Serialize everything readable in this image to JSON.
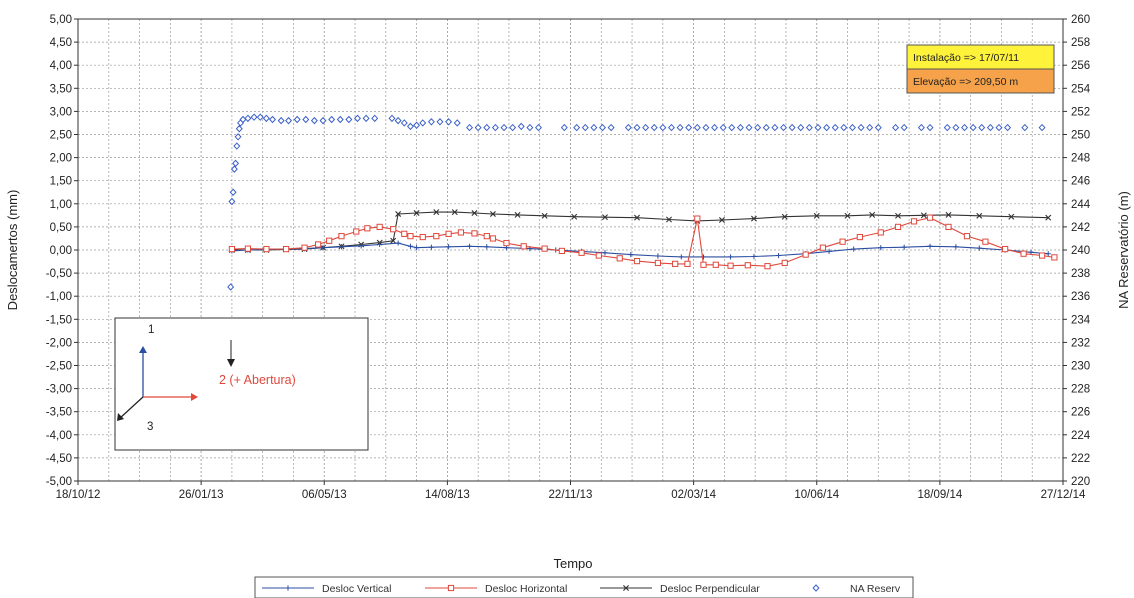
{
  "chart_data": {
    "type": "line",
    "title": "",
    "xlabel": "Tempo",
    "ylabel": "Deslocamertos (mm)",
    "y2label": "NA  Reservatório (m)",
    "xlim": [
      "2012-10-18",
      "2014-12-27"
    ],
    "ylim": [
      -5.0,
      5.0
    ],
    "y2lim": [
      220,
      260
    ],
    "x_ticks": [
      "2012-10-18",
      "2013-01-26",
      "2013-05-06",
      "2013-08-14",
      "2013-11-22",
      "2014-03-02",
      "2014-06-10",
      "2014-09-18",
      "2014-12-27"
    ],
    "x_tick_labels": [
      "18/10/12",
      "26/01/13",
      "06/05/13",
      "14/08/13",
      "22/11/13",
      "02/03/14",
      "10/06/14",
      "18/09/14",
      "27/12/14"
    ],
    "y_tick_labels": [
      "5,00",
      "4,50",
      "4,00",
      "3,50",
      "3,00",
      "2,50",
      "2,00",
      "1,50",
      "1,00",
      "0,50",
      "0,00",
      "-0,50",
      "-1,00",
      "-1,50",
      "-2,00",
      "-2,50",
      "-3,00",
      "-3,50",
      "-4,00",
      "-4,50",
      "-5,00"
    ],
    "y2_tick_labels": [
      "260",
      "258",
      "256",
      "254",
      "252",
      "250",
      "248",
      "246",
      "244",
      "242",
      "240",
      "238",
      "236",
      "234",
      "232",
      "230",
      "228",
      "226",
      "224",
      "222",
      "220"
    ],
    "grid": true,
    "legend_position": "bottom",
    "series": [
      {
        "name": "Desloc Vertical",
        "axis": "left",
        "color": "#2b4ea2",
        "marker": "plus",
        "x": [
          "2013-02-20",
          "2013-03-05",
          "2013-03-20",
          "2013-04-05",
          "2013-04-20",
          "2013-05-05",
          "2013-05-20",
          "2013-06-05",
          "2013-06-20",
          "2013-07-05",
          "2013-07-15",
          "2013-07-20",
          "2013-08-01",
          "2013-08-15",
          "2013-09-01",
          "2013-09-15",
          "2013-10-01",
          "2013-10-20",
          "2013-11-10",
          "2013-12-01",
          "2013-12-20",
          "2014-01-10",
          "2014-02-01",
          "2014-02-20",
          "2014-03-10",
          "2014-04-01",
          "2014-04-20",
          "2014-05-10",
          "2014-06-01",
          "2014-06-20",
          "2014-07-10",
          "2014-08-01",
          "2014-08-20",
          "2014-09-10",
          "2014-10-01",
          "2014-10-20",
          "2014-11-10",
          "2014-12-01",
          "2014-12-15"
        ],
        "values": [
          -0.02,
          0.0,
          0.01,
          0.02,
          0.03,
          0.05,
          0.07,
          0.09,
          0.12,
          0.15,
          0.08,
          0.05,
          0.06,
          0.07,
          0.08,
          0.07,
          0.05,
          0.03,
          0.0,
          -0.03,
          -0.06,
          -0.1,
          -0.13,
          -0.15,
          -0.15,
          -0.15,
          -0.14,
          -0.12,
          -0.08,
          -0.03,
          0.02,
          0.05,
          0.06,
          0.08,
          0.07,
          0.04,
          0.0,
          -0.05,
          -0.08
        ]
      },
      {
        "name": "Desloc Horizontal",
        "axis": "left",
        "color": "#e0483c",
        "marker": "square",
        "x": [
          "2013-02-20",
          "2013-03-05",
          "2013-03-20",
          "2013-04-05",
          "2013-04-20",
          "2013-05-01",
          "2013-05-10",
          "2013-05-20",
          "2013-06-01",
          "2013-06-10",
          "2013-06-20",
          "2013-07-01",
          "2013-07-10",
          "2013-07-15",
          "2013-07-25",
          "2013-08-05",
          "2013-08-15",
          "2013-08-25",
          "2013-09-05",
          "2013-09-15",
          "2013-09-20",
          "2013-10-01",
          "2013-10-15",
          "2013-11-01",
          "2013-11-15",
          "2013-12-01",
          "2013-12-15",
          "2014-01-01",
          "2014-01-15",
          "2014-02-01",
          "2014-02-15",
          "2014-02-25",
          "2014-03-05",
          "2014-03-10",
          "2014-03-20",
          "2014-04-01",
          "2014-04-15",
          "2014-05-01",
          "2014-05-15",
          "2014-06-01",
          "2014-06-15",
          "2014-07-01",
          "2014-07-15",
          "2014-08-01",
          "2014-08-15",
          "2014-08-28",
          "2014-09-10",
          "2014-09-25",
          "2014-10-10",
          "2014-10-25",
          "2014-11-10",
          "2014-11-25",
          "2014-12-10",
          "2014-12-20"
        ],
        "values": [
          0.02,
          0.03,
          0.02,
          0.02,
          0.05,
          0.12,
          0.2,
          0.3,
          0.4,
          0.47,
          0.5,
          0.45,
          0.35,
          0.3,
          0.28,
          0.3,
          0.35,
          0.38,
          0.36,
          0.3,
          0.25,
          0.15,
          0.08,
          0.03,
          -0.02,
          -0.06,
          -0.12,
          -0.18,
          -0.24,
          -0.28,
          -0.3,
          -0.3,
          0.68,
          -0.32,
          -0.32,
          -0.34,
          -0.33,
          -0.35,
          -0.28,
          -0.1,
          0.05,
          0.18,
          0.28,
          0.38,
          0.5,
          0.62,
          0.7,
          0.5,
          0.3,
          0.18,
          0.02,
          -0.08,
          -0.12,
          -0.16
        ]
      },
      {
        "name": "Desloc Perpendicular",
        "axis": "left",
        "color": "#333333",
        "marker": "x",
        "x": [
          "2013-02-20",
          "2013-03-05",
          "2013-03-20",
          "2013-04-05",
          "2013-04-20",
          "2013-05-05",
          "2013-05-20",
          "2013-06-05",
          "2013-06-20",
          "2013-07-01",
          "2013-07-05",
          "2013-07-20",
          "2013-08-05",
          "2013-08-20",
          "2013-09-05",
          "2013-09-20",
          "2013-10-10",
          "2013-11-01",
          "2013-11-25",
          "2013-12-20",
          "2014-01-15",
          "2014-02-10",
          "2014-03-05",
          "2014-03-25",
          "2014-04-20",
          "2014-05-15",
          "2014-06-10",
          "2014-07-05",
          "2014-07-25",
          "2014-08-15",
          "2014-09-05",
          "2014-09-25",
          "2014-10-20",
          "2014-11-15",
          "2014-12-15"
        ],
        "values": [
          0.0,
          0.0,
          0.0,
          0.01,
          0.02,
          0.05,
          0.08,
          0.12,
          0.16,
          0.2,
          0.78,
          0.8,
          0.82,
          0.82,
          0.8,
          0.78,
          0.76,
          0.74,
          0.72,
          0.71,
          0.7,
          0.66,
          0.63,
          0.65,
          0.68,
          0.72,
          0.74,
          0.74,
          0.76,
          0.74,
          0.75,
          0.76,
          0.74,
          0.72,
          0.7
        ]
      },
      {
        "name": "NA Reserv",
        "axis": "right",
        "color": "#3a5fc8",
        "marker": "diamond",
        "x": [
          "2013-02-19",
          "2013-02-20",
          "2013-02-21",
          "2013-02-22",
          "2013-02-23",
          "2013-02-24",
          "2013-02-25",
          "2013-02-26",
          "2013-02-27",
          "2013-03-01",
          "2013-03-05",
          "2013-03-10",
          "2013-03-15",
          "2013-03-20",
          "2013-03-25",
          "2013-04-01",
          "2013-04-07",
          "2013-04-14",
          "2013-04-21",
          "2013-04-28",
          "2013-05-05",
          "2013-05-12",
          "2013-05-19",
          "2013-05-26",
          "2013-06-02",
          "2013-06-09",
          "2013-06-16",
          "2013-06-30",
          "2013-07-05",
          "2013-07-10",
          "2013-07-15",
          "2013-07-20",
          "2013-07-25",
          "2013-08-01",
          "2013-08-08",
          "2013-08-15",
          "2013-08-22",
          "2013-09-01",
          "2013-09-08",
          "2013-09-15",
          "2013-09-22",
          "2013-09-29",
          "2013-10-06",
          "2013-10-13",
          "2013-10-20",
          "2013-10-27",
          "2013-11-17",
          "2013-11-27",
          "2013-12-04",
          "2013-12-11",
          "2013-12-18",
          "2013-12-25",
          "2014-01-08",
          "2014-01-15",
          "2014-01-22",
          "2014-01-29",
          "2014-02-05",
          "2014-02-12",
          "2014-02-19",
          "2014-02-26",
          "2014-03-05",
          "2014-03-12",
          "2014-03-19",
          "2014-03-26",
          "2014-04-02",
          "2014-04-09",
          "2014-04-16",
          "2014-04-23",
          "2014-04-30",
          "2014-05-07",
          "2014-05-14",
          "2014-05-21",
          "2014-05-28",
          "2014-06-04",
          "2014-06-11",
          "2014-06-18",
          "2014-06-25",
          "2014-07-02",
          "2014-07-09",
          "2014-07-16",
          "2014-07-23",
          "2014-07-30",
          "2014-08-13",
          "2014-08-20",
          "2014-09-03",
          "2014-09-10",
          "2014-09-24",
          "2014-10-01",
          "2014-10-08",
          "2014-10-15",
          "2014-10-22",
          "2014-10-29",
          "2014-11-05",
          "2014-11-12",
          "2014-11-26",
          "2014-12-10"
        ],
        "values": [
          236.8,
          244.2,
          245,
          247,
          247.5,
          249,
          249.8,
          250.5,
          251,
          251.3,
          251.4,
          251.5,
          251.5,
          251.4,
          251.3,
          251.2,
          251.2,
          251.3,
          251.3,
          251.2,
          251.2,
          251.3,
          251.3,
          251.3,
          251.4,
          251.4,
          251.4,
          251.4,
          251.2,
          251,
          250.7,
          250.8,
          251,
          251.1,
          251.1,
          251.1,
          251.0,
          250.6,
          250.6,
          250.6,
          250.6,
          250.6,
          250.6,
          250.7,
          250.6,
          250.6,
          250.6,
          250.6,
          250.6,
          250.6,
          250.6,
          250.6,
          250.6,
          250.6,
          250.6,
          250.6,
          250.6,
          250.6,
          250.6,
          250.6,
          250.6,
          250.6,
          250.6,
          250.6,
          250.6,
          250.6,
          250.6,
          250.6,
          250.6,
          250.6,
          250.6,
          250.6,
          250.6,
          250.6,
          250.6,
          250.6,
          250.6,
          250.6,
          250.6,
          250.6,
          250.6,
          250.6,
          250.6,
          250.6,
          250.6,
          250.6,
          250.6,
          250.6,
          250.6,
          250.6,
          250.6,
          250.6,
          250.6,
          250.6,
          250.6,
          250.6
        ]
      }
    ],
    "info_box": [
      {
        "text": "Instalação  => 17/07/11",
        "color": "#fff23a"
      },
      {
        "text": "Elevação   => 209,50 m",
        "color": "#f5a24a"
      }
    ],
    "axes_inset": {
      "label_1": "1",
      "label_2": "2 (+ Abertura)",
      "label_3": "3",
      "color_1": "#2b4ea2",
      "color_2": "#e0483c",
      "color_3": "#222222"
    }
  }
}
